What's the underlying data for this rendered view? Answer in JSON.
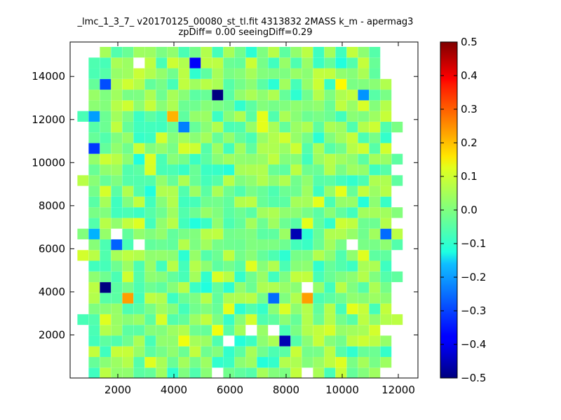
{
  "chart_data": {
    "type": "heatmap",
    "title": "_lmc_1_3_7_ v20170125_00080_st_tl.fit 4313832 2MASS k_m - apermag3",
    "subtitle": "zpDiff= 0.00 seeingDiff=0.29",
    "xlabel": "",
    "ylabel": "",
    "xlim": [
      300,
      12700
    ],
    "ylim": [
      0,
      15600
    ],
    "x_ticks": [
      "2000",
      "4000",
      "6000",
      "8000",
      "10000",
      "12000"
    ],
    "x_tick_values": [
      2000,
      4000,
      6000,
      8000,
      10000,
      12000
    ],
    "y_ticks": [
      "2000",
      "4000",
      "6000",
      "8000",
      "10000",
      "12000",
      "14000"
    ],
    "y_tick_values": [
      2000,
      4000,
      6000,
      8000,
      10000,
      12000,
      14000
    ],
    "x_bin_width": 396,
    "y_bin_width": 496,
    "colormap": "jet",
    "colorbar": {
      "range": [
        -0.5,
        0.5
      ],
      "ticks": [
        "0.5",
        "0.4",
        "0.3",
        "0.2",
        "0.1",
        "0.0",
        "−0.1",
        "−0.2",
        "−0.3",
        "−0.4",
        "−0.5"
      ],
      "tick_values": [
        0.5,
        0.4,
        0.3,
        0.2,
        0.1,
        0.0,
        -0.1,
        -0.2,
        -0.3,
        -0.4,
        -0.5
      ]
    },
    "notable_cells": [
      {
        "x": 5520,
        "y": 12920,
        "value": -0.5
      },
      {
        "x": 1560,
        "y": 4230,
        "value": -0.5
      },
      {
        "x": 7960,
        "y": 1730,
        "value": -0.45
      },
      {
        "x": 8360,
        "y": 6710,
        "value": -0.45
      },
      {
        "x": 4720,
        "y": 14400,
        "value": -0.38
      },
      {
        "x": 1160,
        "y": 10440,
        "value": -0.32
      },
      {
        "x": 1560,
        "y": 13410,
        "value": -0.3
      },
      {
        "x": 1960,
        "y": 6220,
        "value": -0.28
      },
      {
        "x": 11520,
        "y": 6710,
        "value": -0.27
      },
      {
        "x": 7560,
        "y": 3730,
        "value": -0.27
      },
      {
        "x": 4320,
        "y": 11430,
        "value": -0.25
      },
      {
        "x": 9120,
        "y": 15400,
        "value": -0.25
      },
      {
        "x": 10720,
        "y": 12920,
        "value": -0.23
      },
      {
        "x": 1160,
        "y": 11920,
        "value": -0.22
      },
      {
        "x": 1160,
        "y": 6710,
        "value": -0.2
      },
      {
        "x": 3920,
        "y": 11920,
        "value": 0.2
      },
      {
        "x": 2360,
        "y": 3730,
        "value": 0.22
      },
      {
        "x": 8760,
        "y": 3730,
        "value": 0.22
      },
      {
        "x": 9920,
        "y": 13410,
        "value": 0.13
      },
      {
        "x": 4320,
        "y": 1730,
        "value": 0.11
      },
      {
        "x": 7160,
        "y": 11920,
        "value": 0.1
      },
      {
        "x": 7160,
        "y": 11430,
        "value": 0.1
      },
      {
        "x": 5520,
        "y": 2230,
        "value": 0.11
      },
      {
        "x": 9920,
        "y": 8730,
        "value": 0.1
      },
      {
        "x": 8760,
        "y": 7230,
        "value": 0.1
      },
      {
        "x": 10320,
        "y": 3230,
        "value": 0.1
      }
    ],
    "empty_cells": [
      {
        "x": 2760,
        "y": 14400
      },
      {
        "x": 2760,
        "y": 6220
      },
      {
        "x": 1960,
        "y": 6710
      },
      {
        "x": 10320,
        "y": 6220
      },
      {
        "x": 8760,
        "y": 4230
      },
      {
        "x": 5920,
        "y": 1730
      },
      {
        "x": 6720,
        "y": 2230
      },
      {
        "x": 7560,
        "y": 2230
      },
      {
        "x": 8760,
        "y": 230
      },
      {
        "x": 5520,
        "y": 230
      },
      {
        "x": 7160,
        "y": 15400
      },
      {
        "x": 9520,
        "y": 15400
      }
    ]
  }
}
